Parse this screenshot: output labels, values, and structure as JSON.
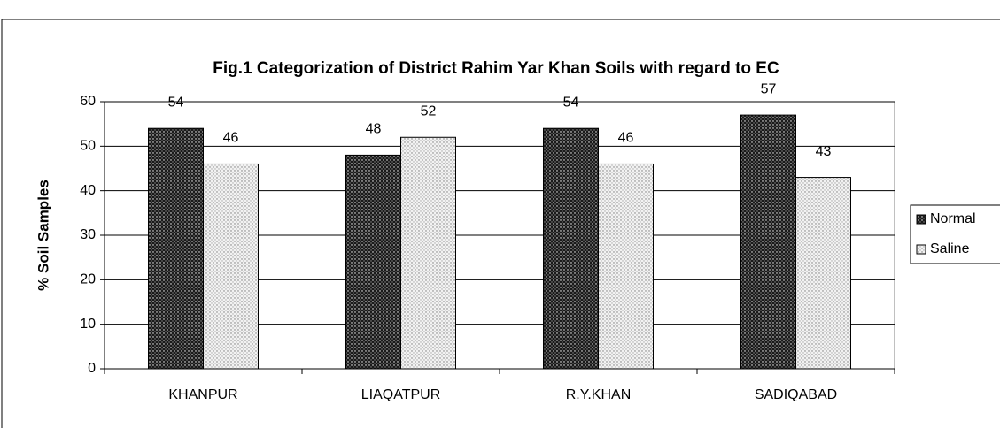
{
  "chart_data": {
    "type": "bar",
    "title": "Fig.1 Categorization of District Rahim Yar Khan Soils with regard to EC",
    "y_label": "% Soil Samples",
    "categories": [
      "KHANPUR",
      "LIAQATPUR",
      "R.Y.KHAN",
      "SADIQABAD"
    ],
    "series": [
      {
        "name": "Normal",
        "color": "#1a1a1a",
        "values": [
          54,
          48,
          54,
          57
        ]
      },
      {
        "name": "Saline",
        "color": "#d9d9d9",
        "values": [
          46,
          52,
          46,
          43
        ]
      }
    ],
    "ylim": [
      0,
      60
    ],
    "yticks": [
      0,
      10,
      20,
      30,
      40,
      50,
      60
    ],
    "grid": true,
    "legend": "right"
  }
}
